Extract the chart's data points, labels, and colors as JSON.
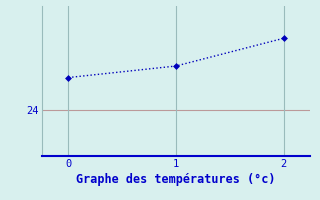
{
  "x": [
    0,
    1,
    2
  ],
  "y": [
    25.4,
    25.9,
    27.1
  ],
  "line_color": "#0000bb",
  "marker": "D",
  "marker_size": 3,
  "linestyle": ":",
  "linewidth": 1.0,
  "xlabel": "Graphe des températures (°c)",
  "xlabel_color": "#0000cc",
  "xlabel_fontsize": 8.5,
  "background_color": "#d8f0ee",
  "axes_facecolor": "#d8f0ee",
  "grid_color": "#99bbbb",
  "tick_color": "#0000cc",
  "spine_color": "#0000cc",
  "ytick_label": "24",
  "ytick_value": 24,
  "ylim": [
    22.0,
    28.5
  ],
  "xlim": [
    -0.25,
    2.25
  ],
  "xticks": [
    0,
    1,
    2
  ],
  "yticks": [
    24
  ],
  "hline_y": 24,
  "hline_color": "#bb9999"
}
